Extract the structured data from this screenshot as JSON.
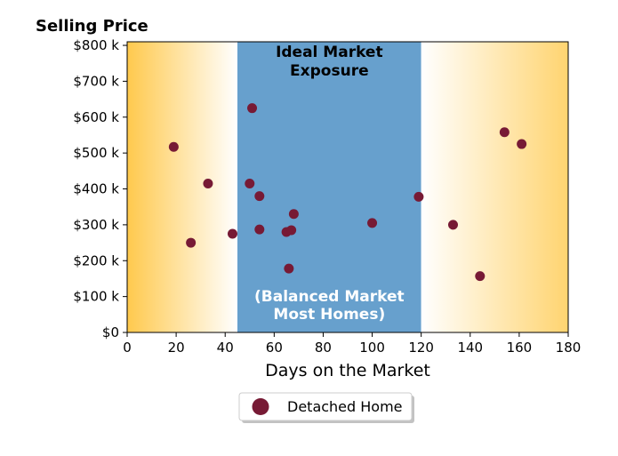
{
  "chart_data": {
    "type": "scatter",
    "title": "Selling Price",
    "xlabel": "Days on the Market",
    "ylabel": "",
    "xlim": [
      0,
      180
    ],
    "ylim": [
      0,
      810000
    ],
    "xticks": [
      0,
      20,
      40,
      60,
      80,
      100,
      120,
      140,
      160,
      180
    ],
    "xtick_labels": [
      "0",
      "20",
      "40",
      "60",
      "80",
      "100",
      "120",
      "140",
      "160",
      "180"
    ],
    "yticks": [
      0,
      100000,
      200000,
      300000,
      400000,
      500000,
      600000,
      700000,
      800000
    ],
    "ytick_labels": [
      "$0",
      "$100 k",
      "$200 k",
      "$300 k",
      "$400 k",
      "$500 k",
      "$600 k",
      "$700 k",
      "$800 k"
    ],
    "grid": false,
    "legend_placement": "below",
    "bands": [
      {
        "from": 0,
        "to": 45,
        "type": "gradient",
        "color_edge": "#FFC94D",
        "color_inner": "#FFFFFF"
      },
      {
        "from": 45,
        "to": 120,
        "type": "solid",
        "color": "#67A0CD"
      },
      {
        "from": 120,
        "to": 180,
        "type": "gradient",
        "color_edge": "#FFD470",
        "color_inner": "#FFFFFF"
      }
    ],
    "annotations": [
      {
        "line1": "Ideal Market",
        "line2": "Exposure",
        "color": "#000000"
      },
      {
        "line1": "(Balanced Market",
        "line2": "Most Homes)",
        "color": "#FFFFFF"
      }
    ],
    "series": [
      {
        "name": "Detached Home",
        "color": "#771A35",
        "points": [
          {
            "x": 19,
            "y": 517000
          },
          {
            "x": 26,
            "y": 250000
          },
          {
            "x": 33,
            "y": 415000
          },
          {
            "x": 43,
            "y": 275000
          },
          {
            "x": 50,
            "y": 415000
          },
          {
            "x": 51,
            "y": 625000
          },
          {
            "x": 54,
            "y": 380000
          },
          {
            "x": 54,
            "y": 287000
          },
          {
            "x": 65,
            "y": 280000
          },
          {
            "x": 66,
            "y": 178000
          },
          {
            "x": 67,
            "y": 285000
          },
          {
            "x": 68,
            "y": 330000
          },
          {
            "x": 100,
            "y": 305000
          },
          {
            "x": 119,
            "y": 378000
          },
          {
            "x": 133,
            "y": 300000
          },
          {
            "x": 144,
            "y": 157000
          },
          {
            "x": 154,
            "y": 558000
          },
          {
            "x": 161,
            "y": 525000
          }
        ]
      }
    ]
  }
}
